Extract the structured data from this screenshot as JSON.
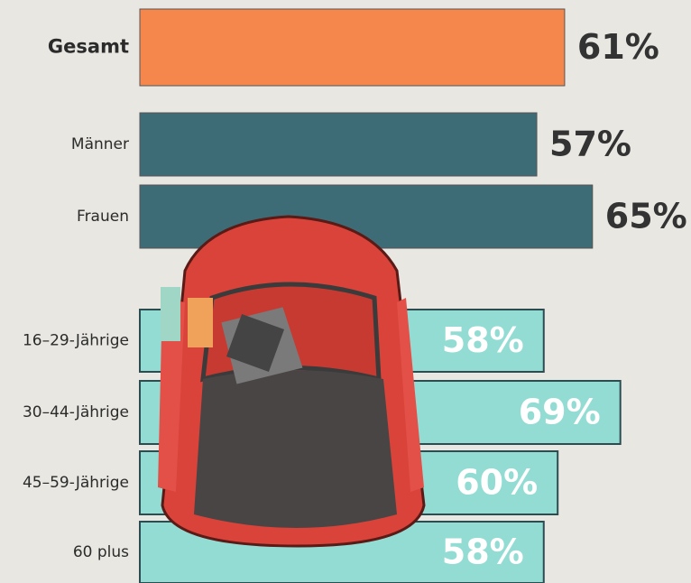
{
  "chart_data": {
    "type": "bar",
    "orientation": "horizontal",
    "categories": [
      "Gesamt",
      "Männer",
      "Frauen",
      "16–29-Jährige",
      "30–44-Jährige",
      "45–59-Jährige",
      "60 plus"
    ],
    "values": [
      61,
      57,
      65,
      58,
      69,
      60,
      58
    ],
    "value_labels": [
      "61%",
      "57%",
      "65%",
      "58%",
      "69%",
      "60%",
      "58%"
    ],
    "colors": [
      "#f5874d",
      "#3e6c76",
      "#3e6c76",
      "#93dcd3",
      "#93dcd3",
      "#93dcd3",
      "#93dcd3"
    ]
  }
}
